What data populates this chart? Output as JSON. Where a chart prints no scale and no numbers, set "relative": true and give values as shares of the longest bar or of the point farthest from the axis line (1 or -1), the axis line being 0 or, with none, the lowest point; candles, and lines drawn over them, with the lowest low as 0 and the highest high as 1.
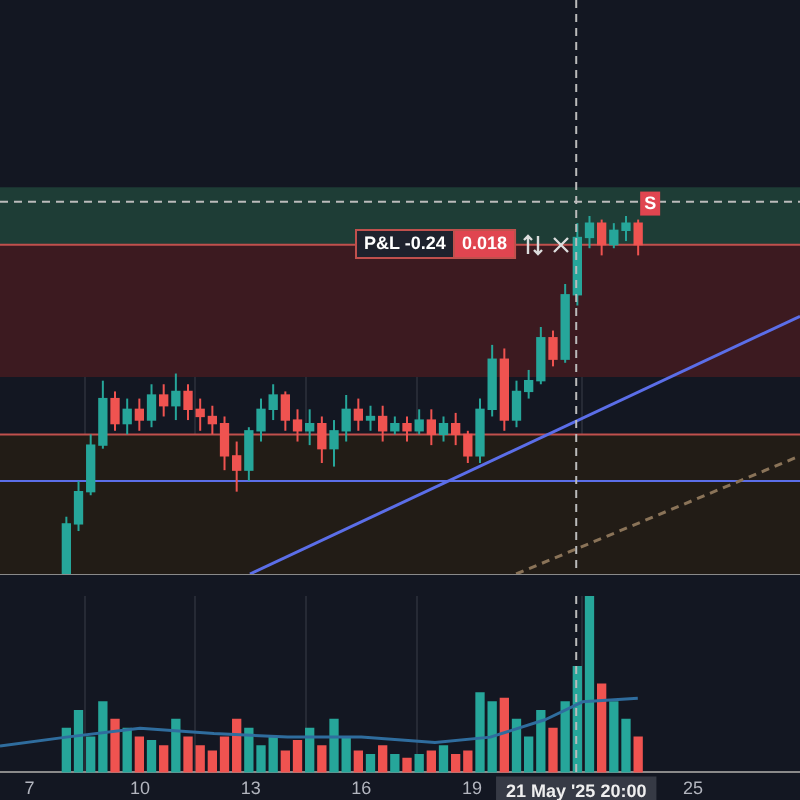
{
  "chart_data": [
    {
      "type": "candlestick",
      "relative": true,
      "tick_labels": false,
      "grid": "x",
      "legend": false,
      "xlim": [
        6.2,
        27.9
      ],
      "xticks": [
        7,
        10,
        13,
        16,
        19,
        25
      ],
      "x": [
        8.0,
        8.33,
        8.66,
        8.99,
        9.32,
        9.65,
        9.98,
        10.31,
        10.64,
        10.97,
        11.3,
        11.63,
        11.96,
        12.29,
        12.62,
        12.95,
        13.28,
        13.61,
        13.94,
        14.27,
        14.6,
        14.93,
        15.26,
        15.59,
        15.92,
        16.25,
        16.58,
        16.91,
        17.24,
        17.57,
        17.9,
        18.23,
        18.56,
        18.89,
        19.22,
        19.55,
        19.88,
        20.21,
        20.54,
        20.87,
        21.2,
        21.53,
        21.86,
        22.19,
        22.52,
        22.85,
        23.18,
        23.51
      ],
      "ohlc": [
        [
          0,
          0.16,
          0,
          0.14
        ],
        [
          0.14,
          0.26,
          0.12,
          0.23
        ],
        [
          0.23,
          0.39,
          0.22,
          0.36
        ],
        [
          0.36,
          0.54,
          0.35,
          0.49
        ],
        [
          0.49,
          0.51,
          0.4,
          0.42
        ],
        [
          0.42,
          0.49,
          0.39,
          0.46
        ],
        [
          0.46,
          0.49,
          0.4,
          0.43
        ],
        [
          0.43,
          0.53,
          0.41,
          0.5
        ],
        [
          0.5,
          0.53,
          0.44,
          0.47
        ],
        [
          0.47,
          0.56,
          0.43,
          0.51
        ],
        [
          0.51,
          0.53,
          0.43,
          0.46
        ],
        [
          0.46,
          0.49,
          0.4,
          0.44
        ],
        [
          0.44,
          0.47,
          0.39,
          0.42
        ],
        [
          0.42,
          0.44,
          0.29,
          0.33
        ],
        [
          0.33,
          0.37,
          0.23,
          0.29
        ],
        [
          0.29,
          0.41,
          0.26,
          0.4
        ],
        [
          0.4,
          0.49,
          0.37,
          0.46
        ],
        [
          0.46,
          0.53,
          0.43,
          0.5
        ],
        [
          0.5,
          0.51,
          0.4,
          0.43
        ],
        [
          0.43,
          0.46,
          0.37,
          0.4
        ],
        [
          0.4,
          0.46,
          0.36,
          0.42
        ],
        [
          0.42,
          0.44,
          0.31,
          0.35
        ],
        [
          0.35,
          0.43,
          0.3,
          0.4
        ],
        [
          0.4,
          0.5,
          0.37,
          0.46
        ],
        [
          0.46,
          0.49,
          0.4,
          0.43
        ],
        [
          0.43,
          0.47,
          0.4,
          0.44
        ],
        [
          0.44,
          0.47,
          0.37,
          0.4
        ],
        [
          0.4,
          0.44,
          0.39,
          0.42
        ],
        [
          0.42,
          0.44,
          0.37,
          0.4
        ],
        [
          0.4,
          0.46,
          0.39,
          0.43
        ],
        [
          0.43,
          0.46,
          0.36,
          0.39
        ],
        [
          0.39,
          0.44,
          0.37,
          0.42
        ],
        [
          0.42,
          0.45,
          0.36,
          0.39
        ],
        [
          0.39,
          0.4,
          0.31,
          0.33
        ],
        [
          0.33,
          0.49,
          0.31,
          0.46
        ],
        [
          0.46,
          0.64,
          0.44,
          0.6
        ],
        [
          0.6,
          0.63,
          0.4,
          0.43
        ],
        [
          0.43,
          0.54,
          0.41,
          0.51
        ],
        [
          0.51,
          0.57,
          0.49,
          0.54
        ],
        [
          0.54,
          0.69,
          0.53,
          0.66
        ],
        [
          0.66,
          0.68,
          0.58,
          0.6
        ],
        [
          0.6,
          0.81,
          0.59,
          0.78
        ],
        [
          0.78,
          0.98,
          0.75,
          0.94
        ],
        [
          0.94,
          1,
          0.91,
          0.98
        ],
        [
          0.98,
          0.99,
          0.89,
          0.92
        ],
        [
          0.92,
          0.98,
          0.91,
          0.96
        ],
        [
          0.96,
          1,
          0.93,
          0.98
        ],
        [
          0.98,
          0.99,
          0.89,
          0.92
        ]
      ],
      "colors": [
        "#26a69a",
        "#26a69a",
        "#26a69a",
        "#26a69a",
        "#ef5350",
        "#26a69a",
        "#ef5350",
        "#26a69a",
        "#ef5350",
        "#26a69a",
        "#ef5350",
        "#ef5350",
        "#ef5350",
        "#ef5350",
        "#ef5350",
        "#26a69a",
        "#26a69a",
        "#26a69a",
        "#ef5350",
        "#ef5350",
        "#26a69a",
        "#ef5350",
        "#26a69a",
        "#26a69a",
        "#ef5350",
        "#26a69a",
        "#ef5350",
        "#26a69a",
        "#ef5350",
        "#26a69a",
        "#ef5350",
        "#26a69a",
        "#ef5350",
        "#ef5350",
        "#26a69a",
        "#26a69a",
        "#ef5350",
        "#26a69a",
        "#26a69a",
        "#26a69a",
        "#ef5350",
        "#26a69a",
        "#26a69a",
        "#26a69a",
        "#ef5350",
        "#26a69a",
        "#26a69a",
        "#ef5350"
      ],
      "series": [
        {
          "type": "line",
          "color": "#5b6ee8",
          "x": [
            12.98,
            27.9
          ],
          "values": [
            0,
            0.72
          ]
        },
        {
          "type": "line",
          "color": "#8a7358",
          "line_style": "dashed",
          "x": [
            20.2,
            27.9
          ],
          "values": [
            0,
            0.33
          ]
        }
      ],
      "ref_lines": [
        {
          "axis": "y",
          "value": 1.04,
          "color": "#bbbbbb",
          "line_style": "dashed"
        },
        {
          "axis": "y",
          "value": 0.92,
          "color": "#c0504d"
        },
        {
          "axis": "y",
          "value": 0.39,
          "color": "#c0504d"
        },
        {
          "axis": "y",
          "value": 0.26,
          "color": "#5b6ee8"
        },
        {
          "axis": "x",
          "value": 21.83,
          "color": "#bbbbbb",
          "line_style": "dashed"
        }
      ],
      "bands": [
        {
          "axis": "y",
          "from": 0.92,
          "to": 1.08,
          "color": "#1e3d36"
        },
        {
          "axis": "y",
          "from": 0.55,
          "to": 0.92,
          "color": "#3c1a20"
        },
        {
          "axis": "y",
          "from": 0,
          "to": 0.39,
          "color": "#221c16"
        }
      ],
      "annotations": [
        "P&L -0.24",
        "0.018",
        "S"
      ]
    },
    {
      "type": "bar",
      "relative": true,
      "grid": "x",
      "legend": false,
      "tick_labels": "x",
      "xlim": [
        6.2,
        27.9
      ],
      "xticks": [
        7,
        10,
        13,
        16,
        19,
        25
      ],
      "x": [
        8.0,
        8.33,
        8.66,
        8.99,
        9.32,
        9.65,
        9.98,
        10.31,
        10.64,
        10.97,
        11.3,
        11.63,
        11.96,
        12.29,
        12.62,
        12.95,
        13.28,
        13.61,
        13.94,
        14.27,
        14.6,
        14.93,
        15.26,
        15.59,
        15.92,
        16.25,
        16.58,
        16.91,
        17.24,
        17.57,
        17.9,
        18.23,
        18.56,
        18.89,
        19.22,
        19.55,
        19.88,
        20.21,
        20.54,
        20.87,
        21.2,
        21.53,
        21.86,
        22.19,
        22.52,
        22.85,
        23.18,
        23.51
      ],
      "values": [
        0.25,
        0.35,
        0.2,
        0.4,
        0.3,
        0.25,
        0.2,
        0.18,
        0.15,
        0.3,
        0.2,
        0.15,
        0.12,
        0.2,
        0.3,
        0.25,
        0.15,
        0.2,
        0.12,
        0.18,
        0.25,
        0.15,
        0.3,
        0.2,
        0.12,
        0.1,
        0.15,
        0.1,
        0.08,
        0.1,
        0.12,
        0.15,
        0.1,
        0.12,
        0.45,
        0.4,
        0.42,
        0.3,
        0.2,
        0.35,
        0.25,
        0.4,
        0.6,
        1,
        0.5,
        0.4,
        0.3,
        0.2
      ],
      "colors": [
        "#26a69a",
        "#26a69a",
        "#26a69a",
        "#26a69a",
        "#ef5350",
        "#26a69a",
        "#ef5350",
        "#26a69a",
        "#ef5350",
        "#26a69a",
        "#ef5350",
        "#ef5350",
        "#ef5350",
        "#ef5350",
        "#ef5350",
        "#26a69a",
        "#26a69a",
        "#26a69a",
        "#ef5350",
        "#ef5350",
        "#26a69a",
        "#ef5350",
        "#26a69a",
        "#26a69a",
        "#ef5350",
        "#26a69a",
        "#ef5350",
        "#26a69a",
        "#ef5350",
        "#26a69a",
        "#ef5350",
        "#26a69a",
        "#ef5350",
        "#ef5350",
        "#26a69a",
        "#26a69a",
        "#ef5350",
        "#26a69a",
        "#26a69a",
        "#26a69a",
        "#ef5350",
        "#26a69a",
        "#26a69a",
        "#26a69a",
        "#ef5350",
        "#26a69a",
        "#26a69a",
        "#ef5350"
      ],
      "series": [
        {
          "type": "line",
          "color": "#2f6d9e",
          "x": [
            6.2,
            8,
            10,
            12,
            14,
            16,
            18,
            19.5,
            21,
            22,
            23.5
          ],
          "values": [
            0.15,
            0.2,
            0.25,
            0.22,
            0.2,
            0.2,
            0.17,
            0.2,
            0.3,
            0.4,
            0.42
          ]
        }
      ],
      "ref_lines": [
        {
          "axis": "x",
          "value": 21.83,
          "color": "#bbbbbb",
          "line_style": "dashed"
        }
      ],
      "annotations": [
        "21 May '25 20:00"
      ]
    }
  ]
}
